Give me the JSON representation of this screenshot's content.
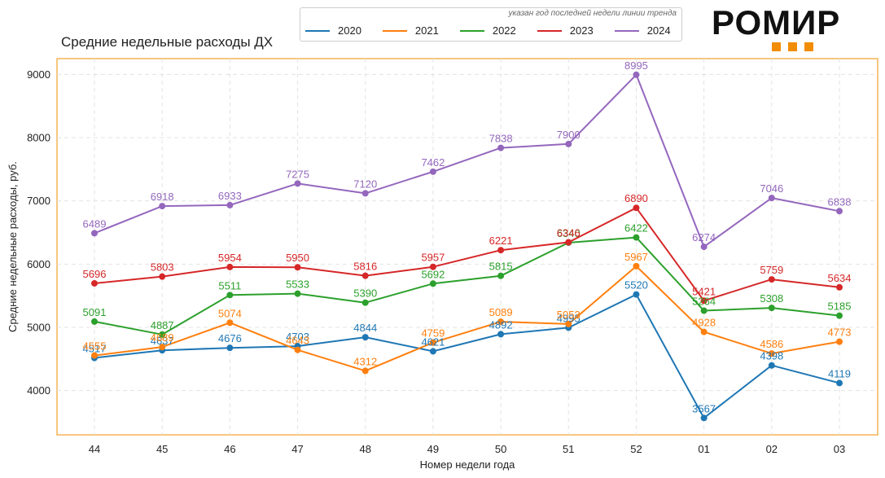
{
  "header": {
    "title": "Средние недельные расходы ДХ",
    "logo_text": "РОМИР",
    "brand_color": "#f28c00"
  },
  "legend": {
    "note": "указан год последней недели линии тренда",
    "placement": "top-center"
  },
  "chart_data": {
    "type": "line",
    "title": "Средние недельные расходы ДХ",
    "xlabel": "Номер недели года",
    "ylabel": "Средние недельные расходы, руб.",
    "categories": [
      "44",
      "45",
      "46",
      "47",
      "48",
      "49",
      "50",
      "51",
      "52",
      "01",
      "02",
      "03"
    ],
    "yticks": [
      4000,
      5000,
      6000,
      7000,
      8000,
      9000
    ],
    "ylim": [
      3300,
      9250
    ],
    "grid": true,
    "series": [
      {
        "name": "2020",
        "color": "#1f77b4",
        "values": [
          4517,
          4637,
          4676,
          4703,
          4844,
          4621,
          4892,
          4995,
          5520,
          3567,
          4398,
          4119
        ],
        "labels": [
          "4517",
          "4637",
          "4676",
          "4703",
          "4844",
          "4621",
          "4892",
          "4995",
          "5520",
          "3567",
          "4398",
          "4119"
        ]
      },
      {
        "name": "2021",
        "color": "#ff7f0e",
        "values": [
          4555,
          4689,
          5074,
          4643,
          4312,
          4759,
          5089,
          5053,
          5967,
          4928,
          4586,
          4773
        ],
        "labels": [
          "4555",
          "4689",
          "5074",
          "4643",
          "4312",
          "4759",
          "5089",
          "5053",
          "5967",
          "4928",
          "4586",
          "4773"
        ]
      },
      {
        "name": "2022",
        "color": "#2ca02c",
        "values": [
          5091,
          4887,
          5511,
          5533,
          5390,
          5692,
          5815,
          6340,
          6422,
          5264,
          5308,
          5185
        ],
        "labels": [
          "5091",
          "4887",
          "5511",
          "5533",
          "5390",
          "5692",
          "5815",
          "6340",
          "6422",
          "5264",
          "5308",
          "5185"
        ]
      },
      {
        "name": "2023",
        "color": "#d62728",
        "values": [
          5696,
          5803,
          5954,
          5950,
          5816,
          5957,
          6221,
          6346,
          6890,
          5421,
          5759,
          5634
        ],
        "labels": [
          "5696",
          "5803",
          "5954",
          "5950",
          "5816",
          "5957",
          "6221",
          "6346",
          "6890",
          "5421",
          "5759",
          "5634"
        ]
      },
      {
        "name": "2024",
        "color": "#9467bd",
        "values": [
          6489,
          6918,
          6933,
          7275,
          7120,
          7462,
          7838,
          7900,
          8995,
          6274,
          7046,
          6838
        ],
        "labels": [
          "6489",
          "6918",
          "6933",
          "7275",
          "7120",
          "7462",
          "7838",
          "7900",
          "8995",
          "6274",
          "7046",
          "6838"
        ]
      }
    ]
  }
}
